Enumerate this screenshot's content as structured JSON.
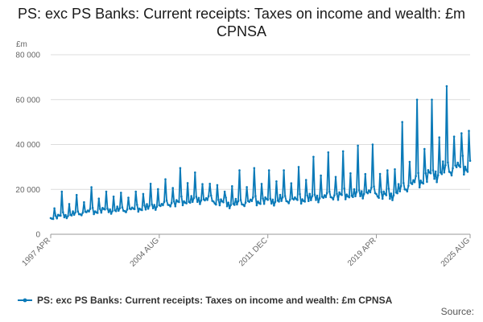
{
  "chart_data": {
    "type": "line",
    "title": "PS: exc PS Banks: Current receipts: Taxes on income and wealth: £m CPNSA",
    "ylabel": "£m",
    "xlabel": "",
    "ylim": [
      0,
      80000
    ],
    "y_ticks": [
      0,
      20000,
      40000,
      60000,
      80000
    ],
    "y_tick_labels": [
      "0",
      "20 000",
      "40 000",
      "60 000",
      "80 000"
    ],
    "x_range": [
      "1997 APR",
      "2025 AUG"
    ],
    "x_ticks": [
      "1997 APR",
      "2004 AUG",
      "2011 DEC",
      "2019 APR",
      "2025 AUG"
    ],
    "grid": true,
    "legend": "bottom",
    "source_label": "Source:",
    "series": [
      {
        "name": "PS: exc PS Banks: Current receipts: Taxes on income and wealth: £m CPNSA",
        "color": "#0a7ab8",
        "annual_january_peaks": {
          "years": [
            1998,
            1999,
            2000,
            2001,
            2002,
            2003,
            2004,
            2005,
            2006,
            2007,
            2008,
            2009,
            2010,
            2011,
            2012,
            2013,
            2014,
            2015,
            2016,
            2017,
            2018,
            2019,
            2020,
            2021,
            2022,
            2023,
            2024,
            2025
          ],
          "values": [
            19000,
            17500,
            21000,
            19000,
            18500,
            19000,
            22500,
            24500,
            29500,
            27500,
            22500,
            19000,
            28500,
            29500,
            28500,
            28500,
            30000,
            34500,
            36500,
            37000,
            39500,
            40000,
            28500,
            50000,
            60000,
            60000,
            66000,
            45000
          ]
        },
        "baseline": {
          "years": [
            1997,
            1998,
            1999,
            2000,
            2001,
            2002,
            2003,
            2004,
            2005,
            2006,
            2007,
            2008,
            2009,
            2010,
            2011,
            2012,
            2013,
            2014,
            2015,
            2016,
            2017,
            2018,
            2019,
            2020,
            2021,
            2022,
            2023,
            2024,
            2025
          ],
          "values": [
            7000,
            8000,
            9000,
            10000,
            10500,
            10500,
            11000,
            12000,
            13000,
            14000,
            15000,
            15000,
            13500,
            13500,
            14500,
            14500,
            15000,
            15000,
            16000,
            16500,
            17000,
            17500,
            18500,
            16500,
            20000,
            23000,
            26000,
            28000,
            29500
          ]
        },
        "start_month": "1997-04",
        "end_month": "2025-08"
      }
    ]
  }
}
